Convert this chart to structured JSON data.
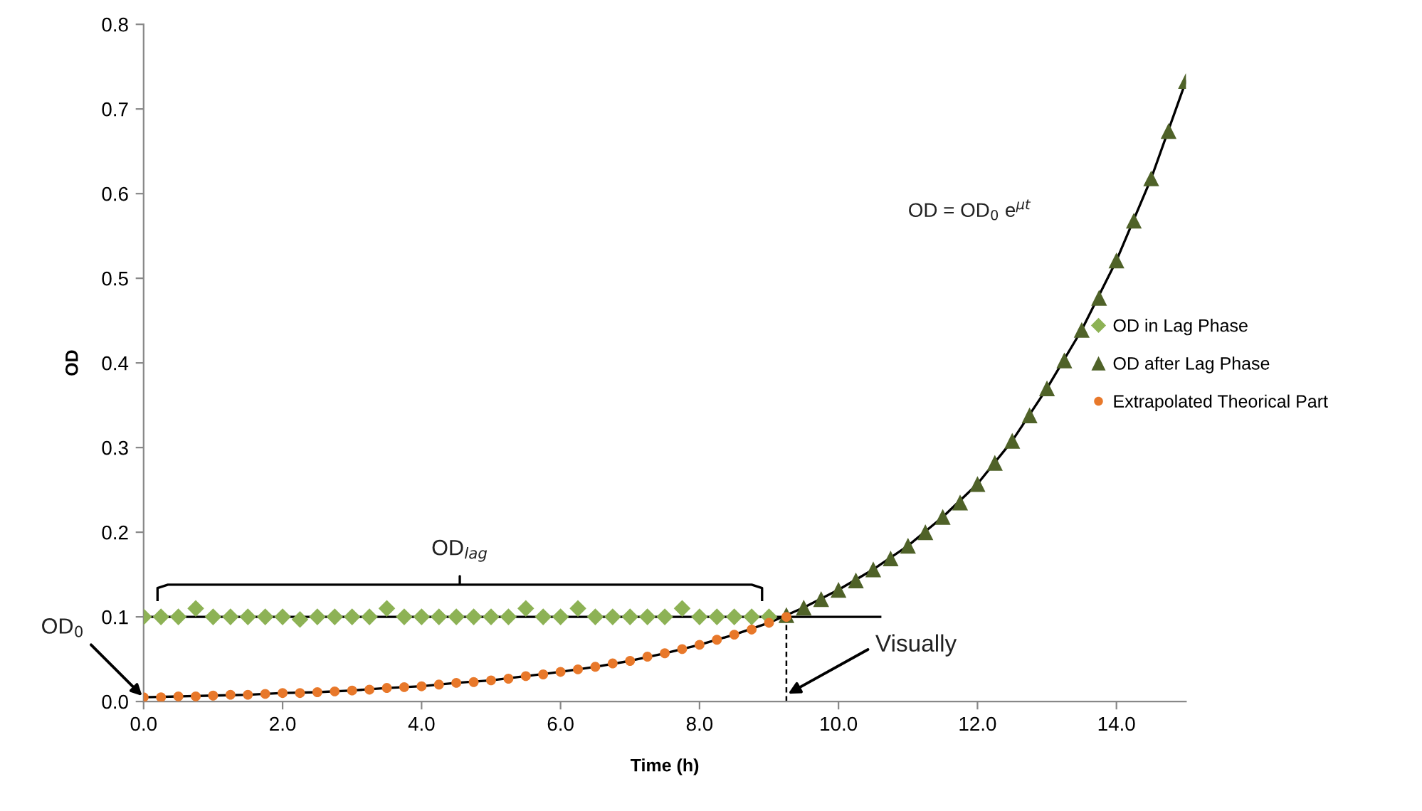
{
  "chart_data": {
    "type": "scatter",
    "xlabel": "Time (h)",
    "ylabel": "OD",
    "xlim": [
      0,
      15
    ],
    "ylim": [
      0,
      0.8
    ],
    "xticks": [
      {
        "value": 0,
        "label": "0.0"
      },
      {
        "value": 2,
        "label": "2.0"
      },
      {
        "value": 4,
        "label": "4.0"
      },
      {
        "value": 6,
        "label": "6.0"
      },
      {
        "value": 8,
        "label": "8.0"
      },
      {
        "value": 10,
        "label": "10.0"
      },
      {
        "value": 12,
        "label": "12.0"
      },
      {
        "value": 14,
        "label": "14.0"
      }
    ],
    "yticks": [
      {
        "value": 0,
        "label": "0.0"
      },
      {
        "value": 0.1,
        "label": "0.1"
      },
      {
        "value": 0.2,
        "label": "0.2"
      },
      {
        "value": 0.3,
        "label": "0.3"
      },
      {
        "value": 0.4,
        "label": "0.4"
      },
      {
        "value": 0.5,
        "label": "0.5"
      },
      {
        "value": 0.6,
        "label": "0.6"
      },
      {
        "value": 0.7,
        "label": "0.7"
      },
      {
        "value": 0.8,
        "label": "0.8"
      }
    ],
    "grid": false,
    "legend": "right",
    "series": [
      {
        "type": "line",
        "color": "#000000",
        "line_style": "solid",
        "marker": "none",
        "x": [
          0,
          10.6
        ],
        "values": [
          0.1,
          0.1
        ]
      },
      {
        "type": "line",
        "color": "#000000",
        "line_style": "solid",
        "marker": "none",
        "x": [
          0.2,
          0.2,
          0.35,
          4.45,
          4.55,
          4.55,
          4.55,
          4.65,
          8.75,
          8.9,
          8.9
        ],
        "values": [
          0.12,
          0.134,
          0.138,
          0.138,
          0.138,
          0.148,
          0.138,
          0.138,
          0.138,
          0.134,
          0.12
        ]
      },
      {
        "type": "line",
        "color": "#000000",
        "line_style": "dashed",
        "marker": "none",
        "x": [
          9.25,
          9.25
        ],
        "values": [
          0,
          0.1
        ]
      },
      {
        "type": "line",
        "color": "#000000",
        "line_style": "solid",
        "marker": "none",
        "x": [
          0,
          0.5,
          1,
          1.5,
          2,
          2.5,
          3,
          3.5,
          4,
          4.5,
          5,
          5.5,
          6,
          6.5,
          7,
          7.5,
          8,
          8.5,
          9,
          9.5,
          10,
          10.5,
          11,
          11.5,
          12,
          12.5,
          13,
          13.5,
          14,
          14.5,
          15
        ],
        "values": [
          0.005,
          0.006,
          0.007,
          0.008,
          0.01,
          0.011,
          0.013,
          0.016,
          0.018,
          0.022,
          0.025,
          0.03,
          0.035,
          0.041,
          0.048,
          0.057,
          0.067,
          0.079,
          0.093,
          0.111,
          0.132,
          0.156,
          0.184,
          0.218,
          0.257,
          0.308,
          0.37,
          0.439,
          0.521,
          0.618,
          0.733
        ]
      },
      {
        "name": "OD in Lag Phase",
        "marker": "diamond",
        "color": "#8db255",
        "x": [
          0,
          0.25,
          0.5,
          0.75,
          1,
          1.25,
          1.5,
          1.75,
          2,
          2.25,
          2.5,
          2.75,
          3,
          3.25,
          3.5,
          3.75,
          4,
          4.25,
          4.5,
          4.75,
          5,
          5.25,
          5.5,
          5.75,
          6,
          6.25,
          6.5,
          6.75,
          7,
          7.25,
          7.5,
          7.75,
          8,
          8.25,
          8.5,
          8.75,
          9
        ],
        "values": [
          0.1,
          0.1,
          0.1,
          0.11,
          0.1,
          0.1,
          0.1,
          0.1,
          0.1,
          0.097,
          0.1,
          0.1,
          0.1,
          0.1,
          0.11,
          0.1,
          0.1,
          0.1,
          0.1,
          0.1,
          0.1,
          0.1,
          0.11,
          0.1,
          0.1,
          0.11,
          0.1,
          0.1,
          0.1,
          0.1,
          0.1,
          0.11,
          0.1,
          0.1,
          0.1,
          0.1,
          0.1
        ]
      },
      {
        "name": "OD after Lag Phase",
        "marker": "triangle",
        "color": "#4f6228",
        "x": [
          9.25,
          9.5,
          9.75,
          10,
          10.25,
          10.5,
          10.75,
          11,
          11.25,
          11.5,
          11.75,
          12,
          12.25,
          12.5,
          12.75,
          13,
          13.25,
          13.5,
          13.75,
          14,
          14.25,
          14.5,
          14.75,
          15
        ],
        "values": [
          0.102,
          0.111,
          0.121,
          0.132,
          0.143,
          0.156,
          0.169,
          0.184,
          0.2,
          0.218,
          0.235,
          0.257,
          0.282,
          0.308,
          0.338,
          0.37,
          0.403,
          0.439,
          0.477,
          0.521,
          0.568,
          0.618,
          0.674,
          0.733
        ]
      },
      {
        "name": "Extrapolated Theorical Part",
        "marker": "circle",
        "color": "#e8782a",
        "x": [
          0,
          0.25,
          0.5,
          0.75,
          1,
          1.25,
          1.5,
          1.75,
          2,
          2.25,
          2.5,
          2.75,
          3,
          3.25,
          3.5,
          3.75,
          4,
          4.25,
          4.5,
          4.75,
          5,
          5.25,
          5.5,
          5.75,
          6,
          6.25,
          6.5,
          6.75,
          7,
          7.25,
          7.5,
          7.75,
          8,
          8.25,
          8.5,
          8.75,
          9,
          9.25
        ],
        "values": [
          0.005,
          0.005,
          0.006,
          0.006,
          0.007,
          0.008,
          0.008,
          0.009,
          0.01,
          0.01,
          0.011,
          0.012,
          0.013,
          0.014,
          0.016,
          0.017,
          0.018,
          0.02,
          0.022,
          0.023,
          0.025,
          0.027,
          0.03,
          0.032,
          0.035,
          0.038,
          0.041,
          0.045,
          0.048,
          0.053,
          0.057,
          0.062,
          0.067,
          0.073,
          0.079,
          0.085,
          0.093,
          0.1
        ]
      }
    ],
    "annotations": [
      "OD = OD$_{0}$ e$^{μt}$",
      "OD$_{lag}$",
      {
        "text": "OD$_{0}$",
        "x": 0,
        "y": 0.005
      },
      {
        "text": "Visually",
        "x": 9.25,
        "y": 0.008
      }
    ]
  }
}
